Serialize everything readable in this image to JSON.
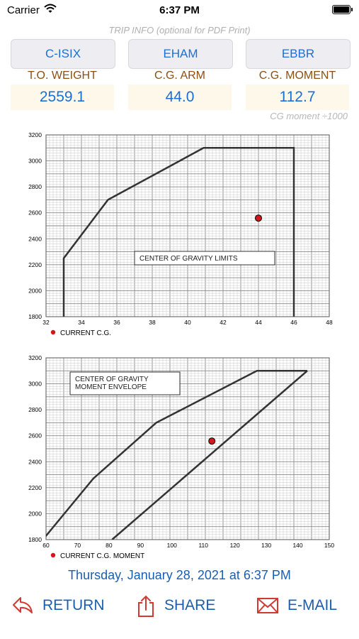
{
  "status_bar": {
    "carrier": "Carrier",
    "time": "6:37 PM"
  },
  "trip_info": {
    "caption": "TRIP INFO (optional for PDF Print)",
    "buttons": [
      "C-ISIX",
      "EHAM",
      "EBBR"
    ]
  },
  "readouts": {
    "weight_label": "T.O. WEIGHT",
    "arm_label": "C.G. ARM",
    "moment_label": "C.G. MOMENT",
    "weight_value": "2559.1",
    "arm_value": "44.0",
    "moment_value": "112.7",
    "moment_note": "CG moment ÷1000"
  },
  "chart_data": [
    {
      "type": "line",
      "title": "CENTER OF GRAVITY LIMITS",
      "legend": "CURRENT C.G.",
      "xlim": [
        32,
        48
      ],
      "ylim": [
        1800,
        3200
      ],
      "xticks": [
        32,
        34,
        36,
        38,
        40,
        42,
        44,
        46,
        48
      ],
      "yticks": [
        1800,
        2000,
        2200,
        2400,
        2600,
        2800,
        3000,
        3200
      ],
      "envelope": [
        [
          33,
          1800
        ],
        [
          33,
          2250
        ],
        [
          35.5,
          2700
        ],
        [
          40.9,
          3100
        ],
        [
          46,
          3100
        ],
        [
          46,
          1800
        ]
      ],
      "current_point": [
        44.0,
        2559.1
      ],
      "grid": true
    },
    {
      "type": "line",
      "title": "CENTER OF GRAVITY MOMENT ENVELOPE",
      "legend": "CURRENT C.G. MOMENT",
      "xlim": [
        60,
        150
      ],
      "ylim": [
        1800,
        3200
      ],
      "xticks": [
        60,
        70,
        80,
        90,
        100,
        110,
        120,
        130,
        140,
        150
      ],
      "yticks": [
        1800,
        2000,
        2200,
        2400,
        2600,
        2800,
        3000,
        3200
      ],
      "envelope_left": [
        [
          59,
          1800
        ],
        [
          75,
          2270
        ],
        [
          95,
          2700
        ],
        [
          127,
          3100
        ],
        [
          143,
          3100
        ]
      ],
      "envelope_right": [
        [
          81,
          1800
        ],
        [
          143,
          3100
        ]
      ],
      "current_point": [
        112.7,
        2559.1
      ],
      "grid": true
    }
  ],
  "footer": {
    "datetime": "Thursday, January 28, 2021 at 6:37 PM",
    "return_label": "RETURN",
    "share_label": "SHARE",
    "email_label": "E-MAIL"
  },
  "colors": {
    "accent": "#1a6fd6",
    "label_brown": "#8b4f16",
    "point_red": "#d0191b"
  },
  "icons": [
    "wifi-icon",
    "battery-icon",
    "return-icon",
    "share-icon",
    "email-icon"
  ]
}
